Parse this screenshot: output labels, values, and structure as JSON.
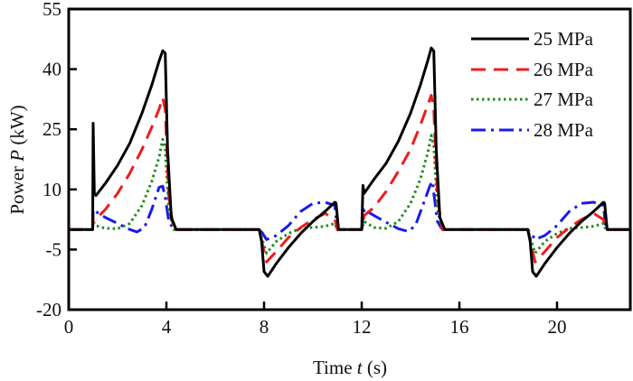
{
  "chart_data": {
    "type": "line",
    "title": "",
    "xlabel_parts": [
      "Time ",
      "t",
      " (s)"
    ],
    "ylabel_parts": [
      "Power ",
      "P",
      " (kW)"
    ],
    "xlim": [
      0,
      23
    ],
    "ylim": [
      -20,
      55
    ],
    "xticks": [
      0,
      4,
      8,
      12,
      16,
      20
    ],
    "xtick_labels": [
      "0",
      "4",
      "8",
      "12",
      "16",
      "20"
    ],
    "yticks": [
      55,
      40,
      25,
      10,
      -5,
      -20
    ],
    "ytick_labels": [
      "55",
      "40",
      "25",
      "10",
      "-5",
      "-20"
    ],
    "grid": false,
    "legend_position": "top-right",
    "series": [
      {
        "name": "25 MPa",
        "color": "#000000",
        "style": "solid",
        "x": [
          0,
          0.98,
          1.0,
          1.05,
          1.12,
          1.5,
          2.0,
          2.5,
          3.0,
          3.4,
          3.7,
          3.85,
          3.95,
          4.05,
          4.2,
          4.4,
          7.8,
          7.9,
          8.0,
          8.15,
          8.5,
          9.0,
          9.5,
          10.0,
          10.5,
          10.9,
          10.95,
          11.05,
          11.9,
          12.0,
          12.05,
          12.1,
          12.5,
          13.0,
          13.5,
          14.0,
          14.4,
          14.7,
          14.85,
          14.95,
          15.05,
          15.2,
          15.4,
          18.8,
          18.9,
          19.0,
          19.15,
          19.5,
          20.0,
          20.5,
          21.0,
          21.5,
          21.9,
          21.95,
          22.05,
          23.0
        ],
        "y": [
          0,
          0,
          26.5,
          9,
          8.5,
          11.5,
          16,
          21.5,
          29,
          36,
          42,
          44.6,
          44,
          20,
          3,
          0,
          0,
          -3,
          -10.5,
          -11.7,
          -8.5,
          -4.5,
          -1,
          2,
          4.5,
          6.8,
          6.6,
          0,
          0,
          0,
          11,
          9,
          12.5,
          16.5,
          22,
          29,
          36,
          42,
          45.3,
          44.5,
          20,
          3,
          0,
          0,
          -3,
          -10.5,
          -11.7,
          -8.5,
          -4.5,
          -1,
          2,
          4.5,
          6.8,
          6.6,
          0,
          0
        ]
      },
      {
        "name": "26 MPa",
        "color": "#ee1c1c",
        "style": "dashed",
        "x": [
          0,
          0.98,
          1.0,
          1.1,
          1.5,
          2.0,
          2.5,
          3.0,
          3.4,
          3.7,
          3.85,
          3.95,
          4.1,
          4.3,
          7.8,
          7.95,
          8.1,
          8.5,
          9.0,
          9.5,
          10.0,
          10.5,
          10.9,
          11.0,
          11.9,
          12.0,
          12.1,
          12.5,
          13.0,
          13.5,
          14.0,
          14.4,
          14.7,
          14.85,
          14.95,
          15.1,
          15.3,
          18.8,
          18.95,
          19.1,
          19.5,
          20.0,
          20.5,
          21.0,
          21.5,
          21.9,
          22.0,
          23.0
        ],
        "y": [
          0,
          0,
          3,
          2.5,
          5,
          9,
          14,
          20,
          25.5,
          30,
          32.9,
          30,
          8,
          0,
          0,
          -4,
          -8.1,
          -5.5,
          -2,
          0.5,
          2.5,
          4,
          2.5,
          0,
          0,
          0,
          3.5,
          5.5,
          9.5,
          14.5,
          20,
          26,
          31,
          33.5,
          30,
          8,
          0,
          0,
          -4,
          -8.1,
          -5.5,
          -2,
          0.5,
          2.5,
          4,
          2.5,
          0,
          0
        ]
      },
      {
        "name": "27 MPa",
        "color": "#1a8c1a",
        "style": "dotted",
        "x": [
          0,
          0.98,
          1.0,
          1.1,
          1.5,
          2.0,
          2.5,
          3.0,
          3.4,
          3.7,
          3.85,
          3.95,
          4.1,
          4.3,
          7.8,
          7.95,
          8.1,
          8.5,
          9.0,
          9.5,
          10.0,
          10.5,
          10.9,
          11.0,
          11.9,
          12.0,
          12.1,
          12.5,
          13.0,
          13.5,
          14.0,
          14.4,
          14.7,
          14.85,
          14.95,
          15.1,
          15.3,
          18.8,
          18.95,
          19.1,
          19.5,
          20.0,
          20.5,
          21.0,
          21.5,
          21.9,
          22.0,
          23.0
        ],
        "y": [
          0,
          0,
          2,
          1,
          0.3,
          0.2,
          1.5,
          6,
          12,
          18,
          22.5,
          20,
          5,
          0,
          0,
          -3,
          -5.9,
          -3,
          -1,
          0.3,
          0.5,
          0.8,
          1.5,
          0,
          0,
          0,
          2,
          0.5,
          0.3,
          2,
          6.5,
          12.5,
          19,
          23.5,
          21,
          5,
          0,
          0,
          -3,
          -5.9,
          -3,
          -1,
          0.3,
          0.5,
          0.8,
          1.5,
          0,
          0
        ]
      },
      {
        "name": "28 MPa",
        "color": "#1a1aee",
        "style": "dashdot",
        "x": [
          0,
          0.98,
          1.0,
          1.1,
          1.5,
          2.0,
          2.5,
          2.8,
          3.1,
          3.4,
          3.7,
          3.85,
          3.95,
          4.1,
          4.3,
          7.8,
          7.95,
          8.1,
          8.5,
          9.0,
          9.5,
          10.0,
          10.5,
          10.9,
          11.0,
          11.9,
          12.0,
          12.1,
          12.5,
          13.0,
          13.5,
          13.9,
          14.2,
          14.5,
          14.8,
          14.9,
          14.95,
          15.1,
          15.3,
          18.8,
          18.95,
          19.1,
          19.5,
          20.0,
          20.5,
          21.0,
          21.5,
          21.9,
          22.0,
          23.0
        ],
        "y": [
          0,
          0,
          5,
          4.5,
          3,
          1.5,
          0,
          -0.6,
          0.5,
          5,
          10.5,
          10.8,
          8,
          2,
          0,
          0,
          -1,
          -2.5,
          -1.5,
          1,
          4.5,
          6.5,
          6.8,
          6,
          0,
          0,
          0,
          5,
          3.5,
          1.8,
          0.2,
          -0.5,
          1,
          6,
          11,
          12,
          9,
          2,
          0,
          0,
          -1,
          -2.5,
          -1.5,
          1,
          4.5,
          6.5,
          6.8,
          6,
          0,
          0
        ]
      }
    ]
  }
}
